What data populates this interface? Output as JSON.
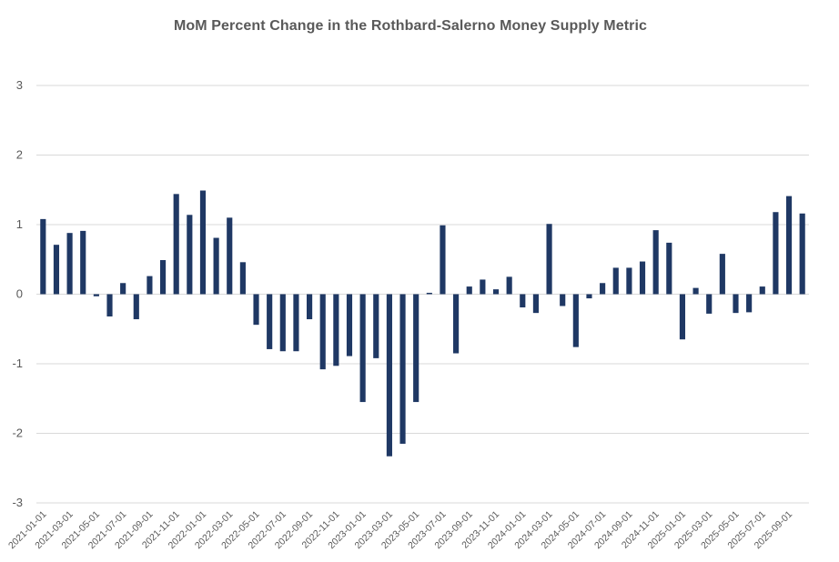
{
  "chart_data": {
    "type": "bar",
    "title": "MoM Percent Change in the Rothbard-Salerno Money Supply Metric",
    "xlabel": "",
    "ylabel": "",
    "ylim": [
      -3,
      3
    ],
    "yticks": [
      -3,
      -2,
      -1,
      0,
      1,
      2,
      3
    ],
    "grid": true,
    "legend": "none",
    "bar_color": "#1f3864",
    "categories": [
      "2021-01-01",
      "2021-02-01",
      "2021-03-01",
      "2021-04-01",
      "2021-05-01",
      "2021-06-01",
      "2021-07-01",
      "2021-08-01",
      "2021-09-01",
      "2021-10-01",
      "2021-11-01",
      "2021-12-01",
      "2022-01-01",
      "2022-02-01",
      "2022-03-01",
      "2022-04-01",
      "2022-05-01",
      "2022-06-01",
      "2022-07-01",
      "2022-08-01",
      "2022-09-01",
      "2022-10-01",
      "2022-11-01",
      "2022-12-01",
      "2023-01-01",
      "2023-02-01",
      "2023-03-01",
      "2023-04-01",
      "2023-05-01",
      "2023-06-01",
      "2023-07-01",
      "2023-08-01",
      "2023-09-01",
      "2023-10-01",
      "2023-11-01",
      "2023-12-01",
      "2024-01-01",
      "2024-02-01",
      "2024-03-01",
      "2024-04-01",
      "2024-05-01",
      "2024-06-01",
      "2024-07-01",
      "2024-08-01",
      "2024-09-01",
      "2024-10-01",
      "2024-11-01",
      "2024-12-01",
      "2025-01-01",
      "2025-02-01",
      "2025-03-01",
      "2025-04-01",
      "2025-05-01",
      "2025-06-01",
      "2025-07-01",
      "2025-08-01",
      "2025-09-01",
      "2025-10-01"
    ],
    "tick_labels": [
      "2021-01-01",
      "2021-03-01",
      "2021-05-01",
      "2021-07-01",
      "2021-09-01",
      "2021-11-01",
      "2022-01-01",
      "2022-03-01",
      "2022-05-01",
      "2022-07-01",
      "2022-09-01",
      "2022-11-01",
      "2023-01-01",
      "2023-03-01",
      "2023-05-01",
      "2023-07-01",
      "2023-09-01",
      "2023-11-01",
      "2024-01-01",
      "2024-03-01",
      "2024-05-01",
      "2024-07-01",
      "2024-09-01",
      "2024-11-01",
      "2025-01-01",
      "2025-03-01",
      "2025-05-01",
      "2025-07-01",
      "2025-09-01"
    ],
    "values": [
      1.08,
      0.71,
      0.88,
      0.91,
      -0.03,
      -0.32,
      0.16,
      -0.36,
      0.26,
      0.49,
      1.44,
      1.14,
      1.49,
      0.81,
      1.1,
      0.46,
      -0.44,
      -0.79,
      -0.82,
      -0.82,
      -0.36,
      -1.08,
      -1.03,
      -0.89,
      -1.55,
      -0.92,
      -2.33,
      -2.15,
      -1.55,
      0.02,
      0.99,
      -0.85,
      0.11,
      0.21,
      0.07,
      0.25,
      -0.19,
      -0.27,
      1.01,
      -0.17,
      -0.76,
      -0.06,
      0.16,
      0.38,
      0.38,
      0.47,
      0.92,
      0.74,
      -0.65,
      0.09,
      -0.28,
      0.58,
      -0.27,
      -0.26,
      0.11,
      1.18,
      1.41,
      1.16
    ]
  }
}
